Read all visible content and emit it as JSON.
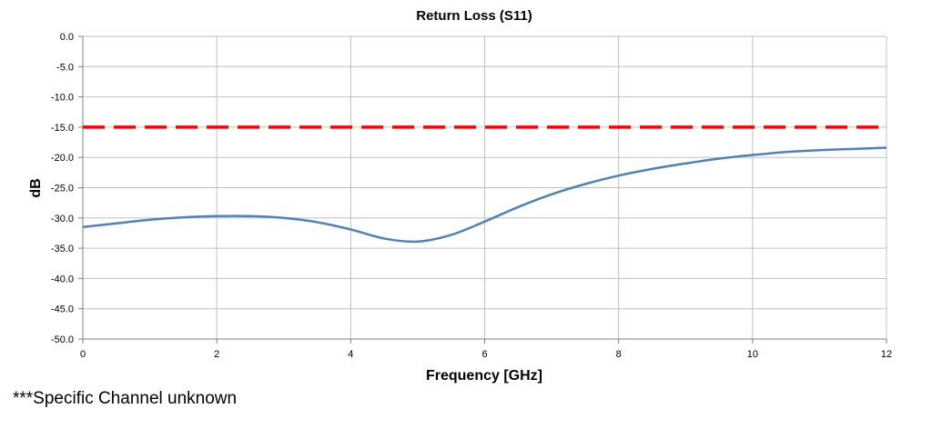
{
  "chart_data": {
    "type": "line",
    "title": "Return Loss (S11)",
    "xlabel": "Frequency [GHz]",
    "ylabel": "dB",
    "xlim": [
      0,
      12
    ],
    "ylim": [
      -50,
      0
    ],
    "x_ticks": [
      "0",
      "2",
      "4",
      "6",
      "8",
      "10",
      "12"
    ],
    "y_ticks": [
      "0.0",
      "-5.0",
      "-10.0",
      "-15.0",
      "-20.0",
      "-25.0",
      "-30.0",
      "-35.0",
      "-40.0",
      "-45.0",
      "-50.0"
    ],
    "grid": true,
    "series": [
      {
        "color": "#4f81bd",
        "style": "solid",
        "x": [
          0,
          0.5,
          1,
          1.5,
          2,
          2.5,
          3,
          3.5,
          4,
          4.5,
          5,
          5.5,
          6,
          6.5,
          7,
          7.5,
          8,
          8.5,
          9,
          9.5,
          10,
          10.5,
          11,
          11.5,
          12
        ],
        "y": [
          -31.5,
          -30.9,
          -30.3,
          -29.9,
          -29.7,
          -29.7,
          -30.0,
          -30.7,
          -31.9,
          -33.4,
          -33.9,
          -32.8,
          -30.6,
          -28.2,
          -26.1,
          -24.4,
          -23.0,
          -21.9,
          -21.0,
          -20.2,
          -19.6,
          -19.1,
          -18.8,
          -18.6,
          -18.4
        ]
      },
      {
        "color": "#ff0000",
        "style": "dashed",
        "x": [
          0,
          12
        ],
        "y": [
          -15,
          -15
        ]
      }
    ]
  },
  "footnote": "***Specific Channel unknown"
}
